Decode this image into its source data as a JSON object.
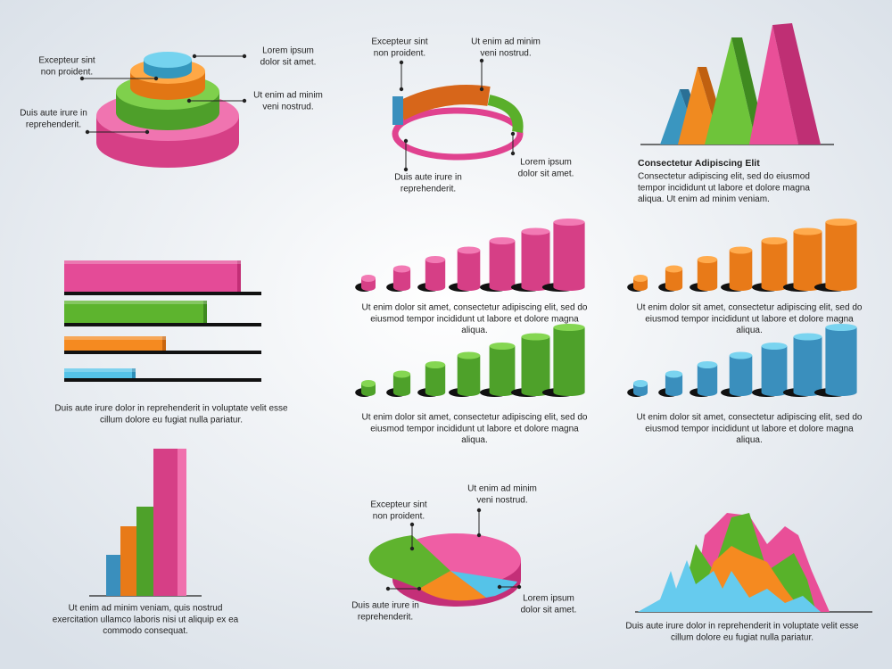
{
  "layer_cake": {
    "labels": [
      [
        "Excepteur sint",
        "non proident."
      ],
      [
        "Lorem ipsum",
        "dolor sit amet."
      ],
      [
        "Ut enim ad minim",
        "veni nostrud."
      ],
      [
        "Duis aute irure in",
        "reprehenderit."
      ]
    ]
  },
  "ring": {
    "labels": [
      [
        "Excepteur sint",
        "non proident."
      ],
      [
        "Ut enim ad minim",
        "veni nostrud."
      ],
      [
        "Duis aute irure in",
        "reprehenderit."
      ],
      [
        "Lorem ipsum",
        "dolor sit amet."
      ]
    ]
  },
  "peaks": {
    "heading": "Consectetur Adipiscing Elit",
    "text": [
      "Consectetur adipiscing elit, sed do eiusmod",
      "tempor incididunt ut labore et dolore magna",
      "aliqua. Ut enim ad minim veniam."
    ]
  },
  "hbars": {
    "text": [
      "Duis aute irure dolor in reprehenderit in voluptate velit esse",
      "cillum dolore eu fugiat nulla pariatur."
    ]
  },
  "cylinders_pink": {
    "text": [
      "Ut enim dolor sit amet, consectetur adipiscing elit, sed do",
      "eiusmod tempor incididunt ut labore et dolore magna",
      "aliqua."
    ]
  },
  "cylinders_orange": {
    "text": [
      "Ut enim dolor sit amet, consectetur adipiscing elit, sed do",
      "eiusmod tempor incididunt ut labore et dolore magna",
      "aliqua."
    ]
  },
  "cylinders_green": {
    "text": [
      "Ut enim dolor sit amet, consectetur adipiscing elit, sed do",
      "eiusmod tempor incididunt ut labore et dolore magna",
      "aliqua."
    ]
  },
  "cylinders_blue": {
    "text": [
      "Ut enim dolor sit amet, consectetur adipiscing elit, sed do",
      "eiusmod tempor incididunt ut labore et dolore magna",
      "aliqua."
    ]
  },
  "vbars": {
    "text": [
      "Ut enim ad minim veniam, quis nostrud",
      "exercitation ullamco laboris nisi ut aliquip ex ea",
      "commodo consequat."
    ]
  },
  "pie": {
    "labels": [
      [
        "Excepteur sint",
        "non proident."
      ],
      [
        "Ut enim ad minim",
        "veni nostrud."
      ],
      [
        "Duis aute irure in",
        "reprehenderit."
      ],
      [
        "Lorem ipsum",
        "dolor sit amet."
      ]
    ]
  },
  "mountains": {
    "text": [
      "Duis aute irure dolor in reprehenderit in voluptate velit esse",
      "cillum dolore eu fugiat nulla pariatur."
    ]
  }
}
